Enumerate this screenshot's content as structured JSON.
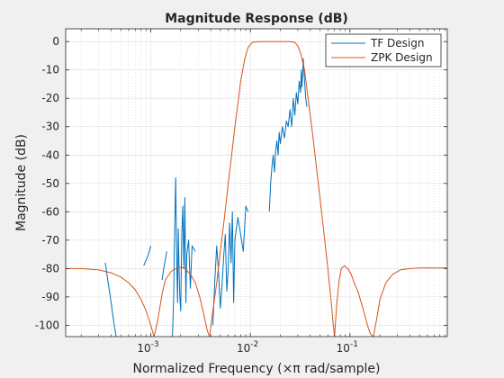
{
  "chart_data": {
    "type": "line",
    "title": "Magnitude Response (dB)",
    "xlabel": "Normalized Frequency  (×π rad/sample)",
    "ylabel": "Magnitude (dB)",
    "xscale": "log",
    "xlim": [
      0.00014,
      0.95
    ],
    "ylim": [
      -104,
      4.5
    ],
    "grid": true,
    "legend_position": "top-right",
    "y_ticks": [
      0,
      -10,
      -20,
      -30,
      -40,
      -50,
      -60,
      -70,
      -80,
      -90,
      -100
    ],
    "y_tick_labels": [
      "0",
      "-10",
      "-20",
      "-30",
      "-40",
      "-50",
      "-60",
      "-70",
      "-80",
      "-90",
      "-100"
    ],
    "x_ticks": [
      0.001,
      0.01,
      0.1
    ],
    "x_tick_labels": [
      {
        "base": "10",
        "exp": "-3"
      },
      {
        "base": "10",
        "exp": "-2"
      },
      {
        "base": "10",
        "exp": "-1"
      }
    ],
    "series": [
      {
        "name": "TF Design",
        "color": "#0072bd",
        "segments": [
          [
            [
              0.00035,
              -78
            ],
            [
              0.00037,
              -84
            ],
            [
              0.0004,
              -92
            ],
            [
              0.00043,
              -100
            ],
            [
              0.00045,
              -104
            ]
          ],
          [
            [
              0.00085,
              -79
            ],
            [
              0.0009,
              -77
            ],
            [
              0.00095,
              -75
            ],
            [
              0.001,
              -72
            ]
          ],
          [
            [
              0.0013,
              -84
            ],
            [
              0.00135,
              -80
            ],
            [
              0.0014,
              -77
            ],
            [
              0.00145,
              -74
            ]
          ],
          [
            [
              0.00165,
              -104
            ],
            [
              0.0017,
              -90
            ],
            [
              0.00172,
              -75
            ],
            [
              0.00175,
              -62
            ],
            [
              0.00178,
              -48
            ],
            [
              0.0018,
              -60
            ],
            [
              0.00183,
              -80
            ],
            [
              0.00186,
              -92
            ],
            [
              0.00189,
              -66
            ],
            [
              0.00192,
              -78
            ],
            [
              0.00196,
              -90
            ],
            [
              0.002,
              -95
            ],
            [
              0.00205,
              -68
            ],
            [
              0.0021,
              -58
            ],
            [
              0.00215,
              -80
            ],
            [
              0.0022,
              -55
            ],
            [
              0.00225,
              -92
            ],
            [
              0.0023,
              -75
            ],
            [
              0.0024,
              -70
            ],
            [
              0.0025,
              -87
            ],
            [
              0.0026,
              -72
            ],
            [
              0.0028,
              -74
            ]
          ],
          [
            [
              0.0042,
              -100
            ],
            [
              0.0044,
              -84
            ],
            [
              0.0046,
              -72
            ],
            [
              0.0048,
              -82
            ],
            [
              0.005,
              -94
            ],
            [
              0.0052,
              -86
            ],
            [
              0.0054,
              -76
            ],
            [
              0.0056,
              -68
            ],
            [
              0.0058,
              -88
            ],
            [
              0.006,
              -80
            ],
            [
              0.0062,
              -64
            ],
            [
              0.0064,
              -78
            ],
            [
              0.0066,
              -60
            ],
            [
              0.0068,
              -92
            ],
            [
              0.007,
              -70
            ],
            [
              0.0075,
              -62
            ],
            [
              0.008,
              -68
            ],
            [
              0.0085,
              -74
            ],
            [
              0.009,
              -58
            ],
            [
              0.0095,
              -60
            ]
          ],
          [
            [
              0.0155,
              -60
            ],
            [
              0.016,
              -50
            ],
            [
              0.0165,
              -44
            ],
            [
              0.017,
              -40
            ],
            [
              0.0175,
              -46
            ],
            [
              0.018,
              -38
            ],
            [
              0.0185,
              -35
            ],
            [
              0.019,
              -40
            ],
            [
              0.0195,
              -32
            ],
            [
              0.02,
              -36
            ],
            [
              0.021,
              -30
            ],
            [
              0.022,
              -34
            ],
            [
              0.023,
              -28
            ],
            [
              0.024,
              -30
            ],
            [
              0.025,
              -24
            ],
            [
              0.026,
              -30
            ],
            [
              0.027,
              -20
            ],
            [
              0.028,
              -26
            ],
            [
              0.029,
              -18
            ],
            [
              0.03,
              -22
            ],
            [
              0.031,
              -14
            ],
            [
              0.032,
              -18
            ],
            [
              0.0325,
              -10
            ],
            [
              0.033,
              -16
            ],
            [
              0.034,
              -6
            ],
            [
              0.035,
              -14
            ],
            [
              0.036,
              -20
            ],
            [
              0.037,
              -23
            ]
          ]
        ]
      },
      {
        "name": "ZPK Design",
        "color": "#d95319",
        "segments": [
          [
            [
              0.00014,
              -80
            ],
            [
              0.0002,
              -80
            ],
            [
              0.0003,
              -80.5
            ],
            [
              0.0004,
              -81.5
            ],
            [
              0.0005,
              -83
            ],
            [
              0.0006,
              -85
            ],
            [
              0.0007,
              -87.5
            ],
            [
              0.0008,
              -91
            ],
            [
              0.0009,
              -95
            ],
            [
              0.001,
              -100
            ],
            [
              0.00108,
              -104
            ],
            [
              0.00118,
              -98
            ],
            [
              0.0013,
              -89
            ],
            [
              0.0014,
              -84
            ],
            [
              0.0016,
              -81
            ],
            [
              0.0018,
              -80
            ],
            [
              0.002,
              -79.5
            ],
            [
              0.0022,
              -80
            ],
            [
              0.0025,
              -82
            ],
            [
              0.0028,
              -85
            ],
            [
              0.0031,
              -90
            ],
            [
              0.0034,
              -96
            ],
            [
              0.0037,
              -102
            ],
            [
              0.0039,
              -104
            ],
            [
              0.0042,
              -95
            ],
            [
              0.0046,
              -85
            ],
            [
              0.005,
              -74
            ],
            [
              0.0055,
              -62
            ],
            [
              0.006,
              -50
            ],
            [
              0.0065,
              -40
            ],
            [
              0.007,
              -30
            ],
            [
              0.0075,
              -22
            ],
            [
              0.008,
              -14
            ],
            [
              0.0088,
              -6
            ],
            [
              0.0095,
              -2
            ],
            [
              0.0105,
              -0.3
            ],
            [
              0.012,
              0
            ],
            [
              0.015,
              0
            ],
            [
              0.02,
              0
            ],
            [
              0.025,
              0
            ],
            [
              0.028,
              -0.3
            ],
            [
              0.03,
              -1.5
            ],
            [
              0.032,
              -4
            ],
            [
              0.035,
              -10
            ],
            [
              0.038,
              -20
            ],
            [
              0.042,
              -32
            ],
            [
              0.046,
              -44
            ],
            [
              0.05,
              -55
            ],
            [
              0.055,
              -68
            ],
            [
              0.06,
              -80
            ],
            [
              0.065,
              -92
            ],
            [
              0.068,
              -100
            ],
            [
              0.07,
              -104
            ],
            [
              0.074,
              -92
            ],
            [
              0.078,
              -84
            ],
            [
              0.082,
              -80
            ],
            [
              0.088,
              -79
            ],
            [
              0.095,
              -80
            ],
            [
              0.103,
              -82
            ],
            [
              0.11,
              -85
            ],
            [
              0.12,
              -88
            ],
            [
              0.13,
              -92
            ],
            [
              0.14,
              -96
            ],
            [
              0.15,
              -100
            ],
            [
              0.16,
              -103
            ],
            [
              0.172,
              -104
            ],
            [
              0.185,
              -98
            ],
            [
              0.2,
              -91
            ],
            [
              0.23,
              -85
            ],
            [
              0.27,
              -82
            ],
            [
              0.32,
              -80.5
            ],
            [
              0.4,
              -80
            ],
            [
              0.5,
              -79.8
            ],
            [
              0.65,
              -79.8
            ],
            [
              0.8,
              -79.8
            ],
            [
              0.95,
              -79.8
            ]
          ]
        ]
      }
    ]
  }
}
